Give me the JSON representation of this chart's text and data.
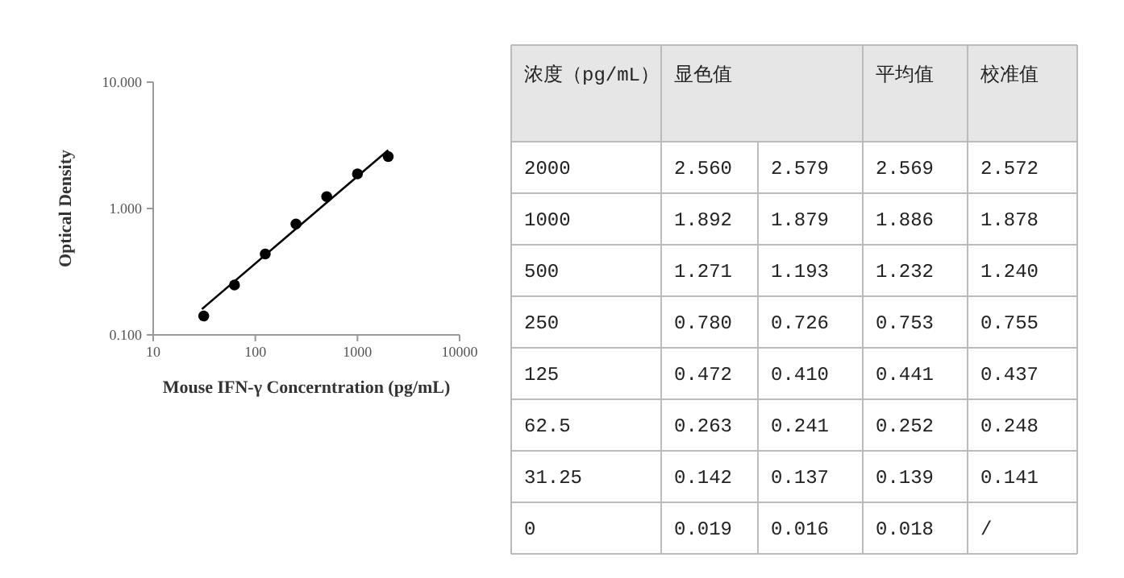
{
  "chart_data": [
    {
      "type": "scatter",
      "xlabel": "Mouse IFN-γ Concerntration (pg/mL)",
      "ylabel": "Optical Density",
      "log": "xy",
      "xlim": [
        10,
        10000
      ],
      "xticks": [
        10,
        100,
        1000,
        10000
      ],
      "ylim": [
        0.1,
        10
      ],
      "yticks": [
        {
          "value": 0.1,
          "label": "0.100"
        },
        {
          "value": 1,
          "label": "1.000"
        },
        {
          "value": 10,
          "label": "10.000"
        }
      ],
      "series": [
        {
          "type": "scatter",
          "marker": "circle",
          "color": "#000000",
          "x": [
            31.25,
            62.5,
            125,
            250,
            500,
            1000,
            2000
          ],
          "values": [
            0.141,
            0.248,
            0.437,
            0.755,
            1.24,
            1.878,
            2.572
          ]
        },
        {
          "type": "line",
          "color": "#000000",
          "x": [
            30,
            2000
          ],
          "values": [
            0.16,
            2.9
          ]
        }
      ]
    },
    {
      "type": "other",
      "xlabel": "浓度（pg/mL）",
      "categories": [
        "2000",
        "1000",
        "500",
        "250",
        "125",
        "62.5",
        "31.25",
        "0"
      ],
      "data_labels": true,
      "series": [
        {
          "name": "显色值",
          "values": [
            2.56,
            1.892,
            1.271,
            0.78,
            0.472,
            0.263,
            0.142,
            0.019
          ],
          "value_labels": [
            "2.560",
            "1.892",
            "1.271",
            "0.780",
            "0.472",
            "0.263",
            "0.142",
            "0.019"
          ]
        },
        {
          "values": [
            2.579,
            1.879,
            1.193,
            0.726,
            0.41,
            0.241,
            0.137,
            0.016
          ],
          "value_labels": [
            "2.579",
            "1.879",
            "1.193",
            "0.726",
            "0.410",
            "0.241",
            "0.137",
            "0.016"
          ]
        },
        {
          "name": "平均值",
          "values": [
            2.569,
            1.886,
            1.232,
            0.753,
            0.441,
            0.252,
            0.139,
            0.018
          ],
          "value_labels": [
            "2.569",
            "1.886",
            "1.232",
            "0.753",
            "0.441",
            "0.252",
            "0.139",
            "0.018"
          ]
        },
        {
          "name": "校准值",
          "values": [
            2.572,
            1.878,
            1.24,
            0.755,
            0.437,
            0.248,
            0.141,
            null
          ],
          "value_labels": [
            "2.572",
            "1.878",
            "1.240",
            "0.755",
            "0.437",
            "0.248",
            "0.141",
            "/"
          ]
        }
      ]
    }
  ]
}
